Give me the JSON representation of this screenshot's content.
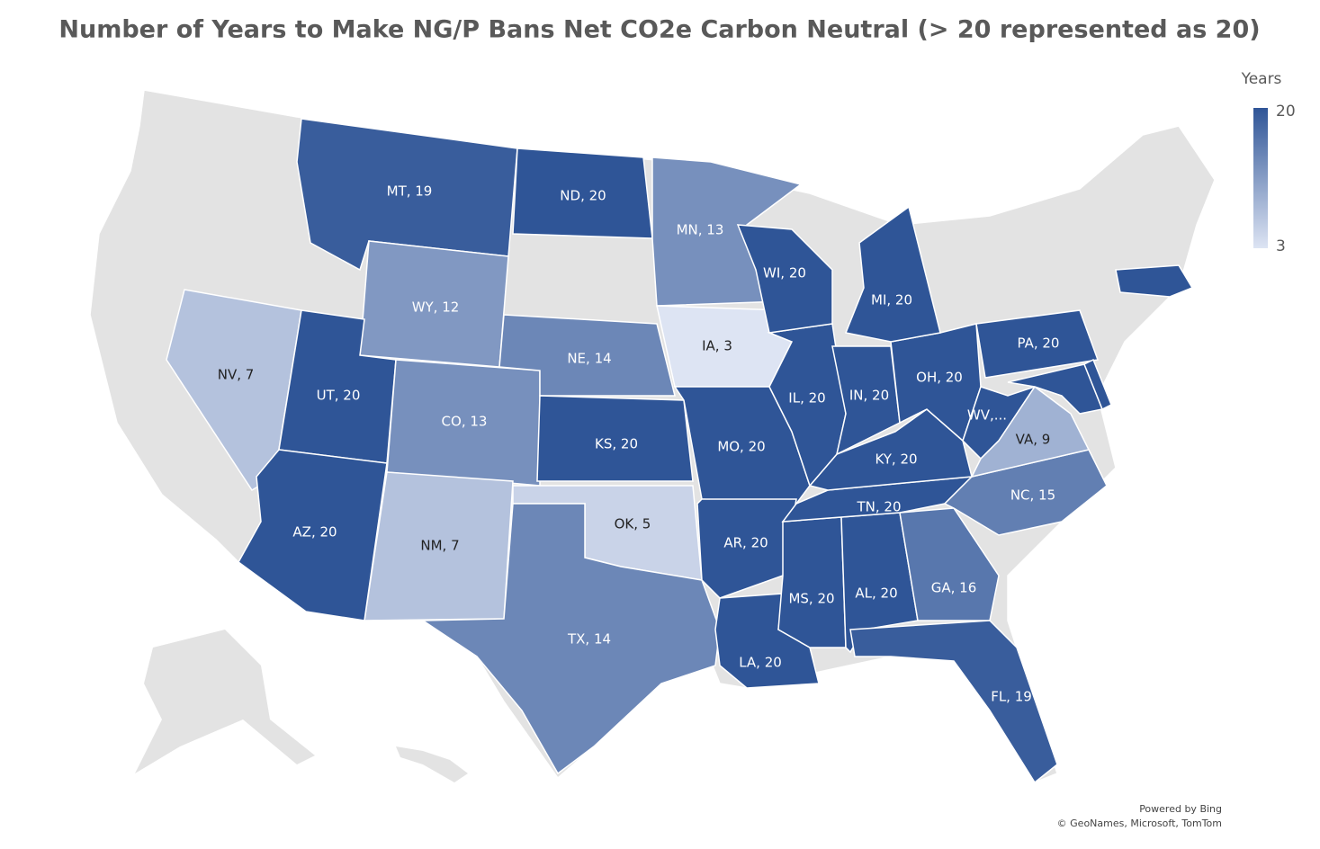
{
  "chart_data": {
    "type": "choropleth",
    "title": "Number of Years to Make NG/P Bans Net CO2e Carbon  Neutral (> 20 represented as 20)",
    "legend_title": "Years",
    "scale": {
      "min": 3,
      "max": 20,
      "colors": [
        "#dde4f3",
        "#2f5597"
      ]
    },
    "labels": [
      "MT, 19",
      "ND, 20",
      "MN, 13",
      "WY, 12",
      "NV, 7",
      "UT, 20",
      "CO, 13",
      "NE, 14",
      "IA, 3",
      "KS, 20",
      "OK, 5",
      "NM, 7",
      "AZ, 20",
      "TX, 14",
      "MO, 20",
      "AR, 20",
      "LA, 20",
      "MS, 20",
      "AL, 20",
      "GA, 16",
      "FL, 19",
      "TN, 20",
      "NC, 15",
      "KY, 20",
      "IL, 20",
      "IN, 20",
      "OH, 20",
      "WI, 20",
      "MI, 20",
      "WV,...",
      "VA, 9",
      "PA, 20",
      null,
      null,
      null
    ],
    "values": [
      19,
      20,
      13,
      12,
      7,
      20,
      13,
      14,
      3,
      20,
      5,
      7,
      20,
      14,
      20,
      20,
      20,
      20,
      20,
      16,
      19,
      20,
      15,
      20,
      20,
      20,
      20,
      20,
      20,
      20,
      9,
      20,
      20,
      20,
      20
    ],
    "credits": [
      "Powered by Bing",
      "© GeoNames, Microsoft, TomTom"
    ]
  }
}
